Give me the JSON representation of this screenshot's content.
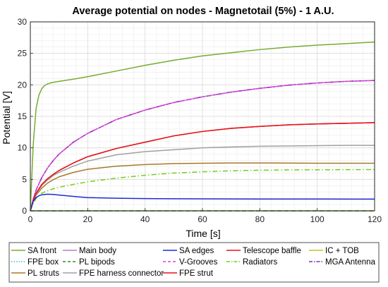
{
  "chart_data": {
    "type": "line",
    "title": "Average potential on nodes - Magnetotail (5%) - 1 A.U.",
    "xlabel": "Time [s]",
    "ylabel": "Potential [V]",
    "xlim": [
      0,
      120
    ],
    "ylim": [
      0,
      30
    ],
    "xticks": [
      "0",
      "20",
      "40",
      "60",
      "80",
      "100",
      "120"
    ],
    "yticks": [
      "0",
      "5",
      "10",
      "15",
      "20",
      "25",
      "30"
    ],
    "grid": true,
    "minor_grid": true,
    "legend_position": "bottom",
    "series": [
      {
        "name": "SA front",
        "color": "#77ac30",
        "dash": "solid",
        "x": [
          0,
          1,
          2,
          3,
          4,
          5,
          6,
          7,
          8,
          10,
          15,
          20,
          30,
          40,
          50,
          60,
          70,
          80,
          90,
          100,
          110,
          120
        ],
        "y": [
          0,
          10.5,
          16.2,
          18.4,
          19.4,
          19.9,
          20.15,
          20.3,
          20.4,
          20.55,
          20.9,
          21.3,
          22.2,
          23.1,
          23.9,
          24.6,
          25.1,
          25.6,
          26.0,
          26.3,
          26.55,
          26.8
        ]
      },
      {
        "name": "Main body",
        "color": "#b07fd6",
        "dash": "solid",
        "x": [
          0,
          1,
          2,
          4,
          6,
          8,
          10,
          15,
          20,
          30,
          40,
          50,
          60,
          70,
          80,
          90,
          100,
          110,
          120
        ],
        "y": [
          0,
          1.8,
          3.3,
          5.3,
          6.8,
          8.0,
          9.0,
          10.9,
          12.3,
          14.5,
          16.0,
          17.2,
          18.1,
          18.85,
          19.45,
          19.95,
          20.3,
          20.55,
          20.7
        ]
      },
      {
        "name": "SA edges",
        "color": "#1f2ad4",
        "dash": "solid",
        "x": [
          0,
          1,
          2,
          3,
          4,
          6,
          8,
          10,
          15,
          20,
          30,
          40,
          50,
          60,
          80,
          100,
          120
        ],
        "y": [
          0,
          1.5,
          2.1,
          2.4,
          2.55,
          2.65,
          2.6,
          2.5,
          2.3,
          2.1,
          2.0,
          1.95,
          1.92,
          1.9,
          1.88,
          1.87,
          1.86
        ]
      },
      {
        "name": "Telescope baffle",
        "color": "#e4141b",
        "dash": "solid",
        "x": [
          0,
          1,
          2,
          4,
          6,
          8,
          10,
          15,
          20,
          30,
          40,
          50,
          60,
          70,
          80,
          90,
          100,
          110,
          120
        ],
        "y": [
          0,
          1.7,
          2.8,
          4.2,
          5.1,
          5.8,
          6.4,
          7.6,
          8.6,
          9.9,
          10.9,
          11.9,
          12.6,
          13.1,
          13.4,
          13.65,
          13.8,
          13.9,
          14.0
        ]
      },
      {
        "name": "IC + TOB",
        "color": "#c9c21e",
        "dash": "solid",
        "x": [
          0,
          120
        ],
        "y": [
          0,
          0
        ]
      },
      {
        "name": "FPE box",
        "color": "#4fb6e6",
        "dash": "dotted",
        "x": [
          0,
          120
        ],
        "y": [
          0,
          0
        ]
      },
      {
        "name": "PL bipods",
        "color": "#2e8b2e",
        "dash": "dashed",
        "x": [
          0,
          120
        ],
        "y": [
          0,
          0
        ]
      },
      {
        "name": "V-Grooves",
        "color": "#e63ad0",
        "dash": "dashed",
        "x": [
          0,
          1,
          2,
          4,
          6,
          8,
          10,
          15,
          20,
          30,
          40,
          50,
          60,
          70,
          80,
          90,
          100,
          110,
          120
        ],
        "y": [
          0,
          1.8,
          3.3,
          5.3,
          6.8,
          8.0,
          9.0,
          10.9,
          12.3,
          14.5,
          16.0,
          17.2,
          18.1,
          18.85,
          19.45,
          19.95,
          20.3,
          20.55,
          20.7
        ]
      },
      {
        "name": "Radiators",
        "color": "#7acb1a",
        "dash": "dashdot",
        "x": [
          0,
          1,
          2,
          4,
          6,
          8,
          10,
          15,
          20,
          30,
          40,
          50,
          60,
          70,
          80,
          90,
          100,
          110,
          120
        ],
        "y": [
          0,
          1.2,
          2.0,
          2.8,
          3.2,
          3.5,
          3.75,
          4.2,
          4.6,
          5.2,
          5.65,
          6.0,
          6.2,
          6.35,
          6.45,
          6.5,
          6.52,
          6.53,
          6.55
        ]
      },
      {
        "name": "MGA Antenna",
        "color": "#7b2fbe",
        "dash": "dashdot",
        "x": [
          0,
          1,
          2,
          4,
          6,
          8,
          10,
          15,
          20,
          30,
          40,
          50,
          60,
          70,
          80,
          90,
          100,
          110,
          120
        ],
        "y": [
          0,
          1.8,
          3.3,
          5.3,
          6.8,
          8.0,
          9.0,
          10.9,
          12.3,
          14.5,
          16.0,
          17.2,
          18.1,
          18.85,
          19.45,
          19.95,
          20.3,
          20.55,
          20.7
        ]
      },
      {
        "name": "PL struts",
        "color": "#a87a2a",
        "dash": "solid",
        "x": [
          0,
          1,
          2,
          4,
          6,
          8,
          10,
          15,
          20,
          30,
          40,
          50,
          60,
          70,
          80,
          90,
          100,
          110,
          120
        ],
        "y": [
          0,
          1.5,
          2.5,
          3.6,
          4.4,
          4.95,
          5.4,
          6.1,
          6.6,
          7.1,
          7.35,
          7.5,
          7.55,
          7.6,
          7.6,
          7.58,
          7.56,
          7.55,
          7.55
        ]
      },
      {
        "name": "FPE harness connector",
        "color": "#a0a0a0",
        "dash": "solid",
        "x": [
          0,
          1,
          2,
          4,
          6,
          8,
          10,
          15,
          20,
          30,
          40,
          50,
          60,
          70,
          80,
          90,
          100,
          110,
          120
        ],
        "y": [
          0,
          1.6,
          2.7,
          4.0,
          4.9,
          5.6,
          6.1,
          7.1,
          7.9,
          8.9,
          9.4,
          9.7,
          10.0,
          10.15,
          10.25,
          10.3,
          10.35,
          10.4,
          10.4
        ]
      },
      {
        "name": "FPE strut",
        "color": "#e4141b",
        "dash": "solid",
        "x": [
          0,
          1,
          2,
          4,
          6,
          8,
          10,
          15,
          20,
          30,
          40,
          50,
          60,
          70,
          80,
          90,
          100,
          110,
          120
        ],
        "y": [
          0,
          1.7,
          2.8,
          4.2,
          5.1,
          5.8,
          6.4,
          7.6,
          8.6,
          9.9,
          10.9,
          11.9,
          12.6,
          13.1,
          13.4,
          13.65,
          13.8,
          13.9,
          14.0
        ]
      }
    ],
    "legend_rows": [
      [
        "SA front",
        "Main body",
        "SA edges",
        "Telescope baffle",
        "IC + TOB"
      ],
      [
        "FPE box",
        "PL bipods",
        "V-Grooves",
        "Radiators",
        "MGA Antenna"
      ],
      [
        "PL struts",
        "FPE harness connector",
        "FPE strut"
      ]
    ]
  }
}
